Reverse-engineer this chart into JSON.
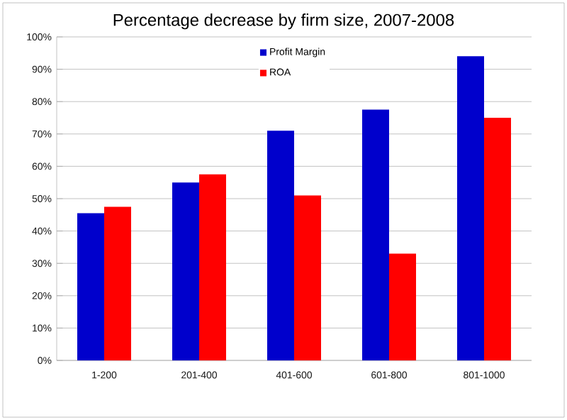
{
  "chart_data": {
    "type": "bar",
    "title": "Percentage decrease by firm size, 2007-2008",
    "categories": [
      "1-200",
      "201-400",
      "401-600",
      "601-800",
      "801-1000"
    ],
    "series": [
      {
        "name": "Profit Margin",
        "color": "#0000cc",
        "values": [
          45.5,
          55,
          71,
          77.5,
          94
        ]
      },
      {
        "name": "ROA",
        "color": "#ff0000",
        "values": [
          47.5,
          57.5,
          51,
          33,
          75
        ]
      }
    ],
    "ylim": [
      0,
      100
    ],
    "yticks": [
      {
        "value": 0,
        "label": "0%"
      },
      {
        "value": 10,
        "label": "10%"
      },
      {
        "value": 20,
        "label": "20%"
      },
      {
        "value": 30,
        "label": "30%"
      },
      {
        "value": 40,
        "label": "40%"
      },
      {
        "value": 50,
        "label": "50%"
      },
      {
        "value": 60,
        "label": "60%"
      },
      {
        "value": 70,
        "label": "70%"
      },
      {
        "value": 80,
        "label": "80%"
      },
      {
        "value": 90,
        "label": "90%"
      },
      {
        "value": 100,
        "label": "100%"
      }
    ],
    "grid": "y",
    "legend": "top"
  }
}
